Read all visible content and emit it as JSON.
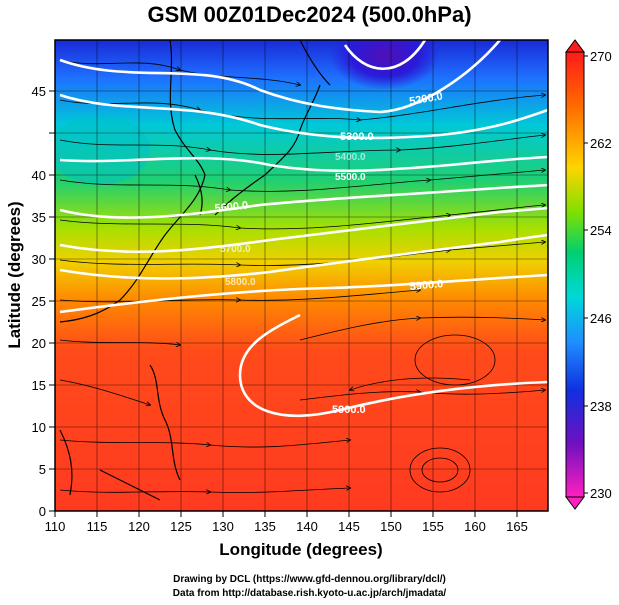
{
  "title": "GSM 00Z01Dec2024 (500.0hPa)",
  "xlabel": "Longitude (degrees)",
  "ylabel": "Latitude  (degrees)",
  "x_ticks": [
    "110",
    "115",
    "120",
    "125",
    "130",
    "135",
    "140",
    "145",
    "150",
    "155",
    "160",
    "165"
  ],
  "y_ticks": [
    "0",
    "5",
    "10",
    "15",
    "20",
    "25",
    "30",
    "35",
    "40",
    "45"
  ],
  "colorbar": {
    "labels": [
      "270",
      "262",
      "254",
      "246",
      "238",
      "230"
    ],
    "colors": [
      "#ff1a1a",
      "#ff6a00",
      "#ffd400",
      "#7fe000",
      "#00d070",
      "#00d8d8",
      "#1e90ff",
      "#1030e0",
      "#7010c0",
      "#ff20c0"
    ]
  },
  "contours": [
    {
      "label": "5200.0"
    },
    {
      "label": "5300.0"
    },
    {
      "label": "5400.0"
    },
    {
      "label": "5500.0"
    },
    {
      "label": "5600.0"
    },
    {
      "label": "5700.0"
    },
    {
      "label": "5800.0"
    },
    {
      "label": "5900.0"
    },
    {
      "label": "5900.0"
    }
  ],
  "credits": [
    "Drawing by DCL (https://www.gfd-dennou.org/library/dcl/)",
    "Data from http://database.rish.kyoto-u.ac.jp/arch/jmadata/"
  ]
}
